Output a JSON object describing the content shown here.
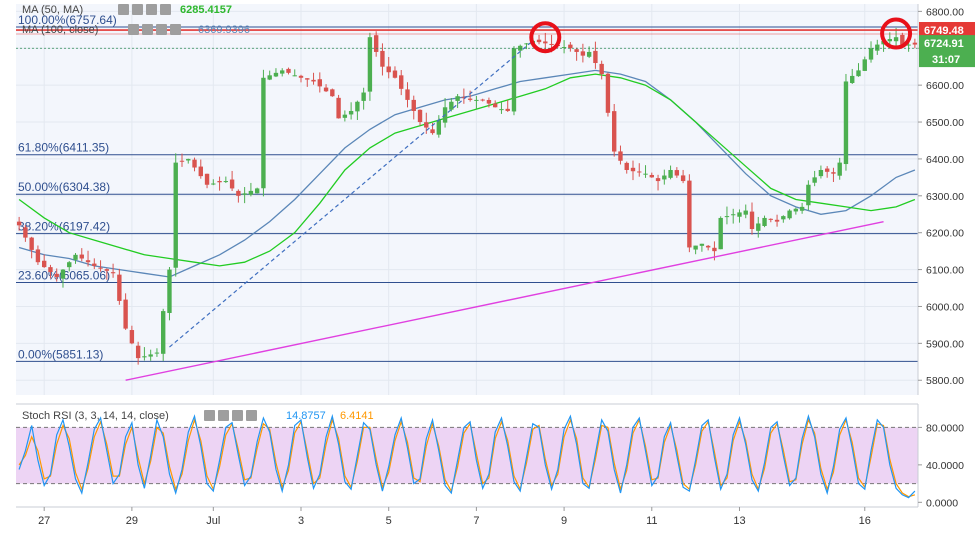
{
  "legend": {
    "ma50": {
      "label": "MA (50, MA)",
      "value": "6285.4157",
      "value_color": "#2eb82e"
    },
    "ma100": {
      "label": "MA (100, close)",
      "value": "6369.9396",
      "value_color": "#5b87b8"
    },
    "stoch": {
      "label": "Stoch RSI (3, 3, 14, 14, close)",
      "k_value": "14.8757",
      "d_value": "6.4141"
    }
  },
  "price_badges": {
    "high": "6749.48",
    "last": "6724.91",
    "countdown": "31:07"
  },
  "colors": {
    "up": "#4caf50",
    "down": "#d9534f",
    "ma50": "#22cc22",
    "ma100": "#5b87b8",
    "fib": "#2f4f8f",
    "trendline": "#e040e0",
    "dashed": "#3f6fc0",
    "resistance": "#e53935",
    "circle": "#e8101a",
    "rsi_k": "#2196f3",
    "rsi_d": "#ff9800",
    "rsi_band": "#e7c6f0",
    "plot_bg": "#f3f6fc",
    "badge_red": "#e53935",
    "badge_green": "#4caf50"
  },
  "chart_data": [
    {
      "type": "candlestick",
      "title": "",
      "y_ticks": [
        5800,
        5900,
        6000,
        6100,
        6200,
        6300,
        6400,
        6500,
        6600,
        6700,
        6800
      ],
      "ylim": [
        5760,
        6820
      ],
      "x_labels": [
        {
          "label": "27",
          "slot": 4
        },
        {
          "label": "29",
          "slot": 18
        },
        {
          "label": "Jul",
          "slot": 31
        },
        {
          "label": "3",
          "slot": 45
        },
        {
          "label": "5",
          "slot": 59
        },
        {
          "label": "7",
          "slot": 73
        },
        {
          "label": "9",
          "slot": 87
        },
        {
          "label": "11",
          "slot": 101
        },
        {
          "label": "13",
          "slot": 115
        },
        {
          "label": "16",
          "slot": 135
        }
      ],
      "fibonacci": [
        {
          "label": "100.00%(6757.64)",
          "price": 6757.64
        },
        {
          "label": "61.80%(6411.35)",
          "price": 6411.35
        },
        {
          "label": "50.00%(6304.38)",
          "price": 6304.38
        },
        {
          "label": "38.20%(6197.42)",
          "price": 6197.42
        },
        {
          "label": "23.60%(6065.06)",
          "price": 6065.06
        },
        {
          "label": "0.00%(5851.13)",
          "price": 5851.13
        }
      ],
      "resistance_line": 6749.48,
      "trendline": {
        "from": [
          17,
          5800
        ],
        "to": [
          138,
          6230
        ]
      },
      "dashed_line": {
        "from": [
          24,
          5890
        ],
        "to": [
          82,
          6720
        ]
      },
      "circles": [
        {
          "slot": 84,
          "price": 6730
        },
        {
          "slot": 140,
          "price": 6740
        }
      ],
      "ohlc_keypoints": [
        [
          0,
          6220
        ],
        [
          3,
          6120
        ],
        [
          6,
          6080
        ],
        [
          9,
          6140
        ],
        [
          12,
          6110
        ],
        [
          15,
          6090
        ],
        [
          17,
          5940
        ],
        [
          19,
          5860
        ],
        [
          22,
          5875
        ],
        [
          24,
          6100
        ],
        [
          25,
          6390
        ],
        [
          27,
          6400
        ],
        [
          30,
          6330
        ],
        [
          33,
          6340
        ],
        [
          35,
          6300
        ],
        [
          38,
          6320
        ],
        [
          39,
          6620
        ],
        [
          42,
          6640
        ],
        [
          45,
          6620
        ],
        [
          47,
          6610
        ],
        [
          50,
          6570
        ],
        [
          51,
          6510
        ],
        [
          53,
          6530
        ],
        [
          55,
          6580
        ],
        [
          56,
          6730
        ],
        [
          58,
          6650
        ],
        [
          60,
          6620
        ],
        [
          62,
          6560
        ],
        [
          64,
          6500
        ],
        [
          66,
          6470
        ],
        [
          68,
          6540
        ],
        [
          70,
          6570
        ],
        [
          72,
          6560
        ],
        [
          74,
          6560
        ],
        [
          76,
          6540
        ],
        [
          78,
          6530
        ],
        [
          79,
          6700
        ],
        [
          82,
          6720
        ],
        [
          85,
          6710
        ],
        [
          88,
          6700
        ],
        [
          90,
          6680
        ],
        [
          91,
          6690
        ],
        [
          93,
          6630
        ],
        [
          95,
          6420
        ],
        [
          97,
          6370
        ],
        [
          100,
          6360
        ],
        [
          102,
          6340
        ],
        [
          104,
          6370
        ],
        [
          106,
          6340
        ],
        [
          107,
          6160
        ],
        [
          109,
          6170
        ],
        [
          111,
          6150
        ],
        [
          112,
          6240
        ],
        [
          114,
          6250
        ],
        [
          116,
          6260
        ],
        [
          117,
          6210
        ],
        [
          119,
          6240
        ],
        [
          121,
          6230
        ],
        [
          123,
          6260
        ],
        [
          125,
          6270
        ],
        [
          126,
          6330
        ],
        [
          128,
          6370
        ],
        [
          130,
          6360
        ],
        [
          131,
          6390
        ],
        [
          132,
          6610
        ],
        [
          134,
          6640
        ],
        [
          136,
          6700
        ],
        [
          138,
          6720
        ],
        [
          140,
          6730
        ],
        [
          141,
          6710
        ]
      ],
      "ma100_points": [
        [
          0,
          6160
        ],
        [
          4,
          6140
        ],
        [
          8,
          6130
        ],
        [
          12,
          6110
        ],
        [
          16,
          6100
        ],
        [
          20,
          6090
        ],
        [
          24,
          6080
        ],
        [
          28,
          6110
        ],
        [
          32,
          6140
        ],
        [
          36,
          6180
        ],
        [
          40,
          6230
        ],
        [
          44,
          6290
        ],
        [
          48,
          6360
        ],
        [
          52,
          6430
        ],
        [
          56,
          6480
        ],
        [
          60,
          6520
        ],
        [
          64,
          6540
        ],
        [
          68,
          6560
        ],
        [
          72,
          6570
        ],
        [
          76,
          6590
        ],
        [
          80,
          6610
        ],
        [
          84,
          6620
        ],
        [
          88,
          6630
        ],
        [
          92,
          6640
        ],
        [
          96,
          6630
        ],
        [
          100,
          6610
        ],
        [
          104,
          6560
        ],
        [
          108,
          6500
        ],
        [
          112,
          6430
        ],
        [
          116,
          6360
        ],
        [
          120,
          6300
        ],
        [
          124,
          6270
        ],
        [
          128,
          6250
        ],
        [
          132,
          6260
        ],
        [
          136,
          6300
        ],
        [
          140,
          6350
        ],
        [
          143,
          6370
        ]
      ],
      "ma50_points": [
        [
          0,
          6290
        ],
        [
          4,
          6240
        ],
        [
          8,
          6200
        ],
        [
          12,
          6180
        ],
        [
          16,
          6160
        ],
        [
          20,
          6140
        ],
        [
          24,
          6130
        ],
        [
          28,
          6120
        ],
        [
          32,
          6110
        ],
        [
          36,
          6120
        ],
        [
          40,
          6150
        ],
        [
          44,
          6200
        ],
        [
          48,
          6280
        ],
        [
          52,
          6370
        ],
        [
          56,
          6430
        ],
        [
          60,
          6470
        ],
        [
          64,
          6490
        ],
        [
          68,
          6510
        ],
        [
          72,
          6530
        ],
        [
          76,
          6550
        ],
        [
          80,
          6570
        ],
        [
          84,
          6590
        ],
        [
          88,
          6620
        ],
        [
          92,
          6630
        ],
        [
          96,
          6620
        ],
        [
          100,
          6600
        ],
        [
          104,
          6560
        ],
        [
          108,
          6500
        ],
        [
          112,
          6440
        ],
        [
          116,
          6380
        ],
        [
          120,
          6320
        ],
        [
          124,
          6290
        ],
        [
          128,
          6280
        ],
        [
          132,
          6270
        ],
        [
          136,
          6260
        ],
        [
          140,
          6270
        ],
        [
          143,
          6290
        ]
      ]
    },
    {
      "type": "line",
      "title": "",
      "y_ticks": [
        0,
        40,
        80
      ],
      "y_tick_labels": [
        "0.0000",
        "40.0000",
        "80.0000"
      ],
      "ylim": [
        -5,
        105
      ],
      "overbought": 80,
      "oversold": 20,
      "k_values": [
        35,
        55,
        82,
        45,
        18,
        30,
        72,
        88,
        60,
        25,
        10,
        42,
        78,
        90,
        55,
        20,
        30,
        70,
        85,
        40,
        15,
        50,
        88,
        70,
        30,
        10,
        35,
        75,
        92,
        60,
        20,
        12,
        45,
        80,
        85,
        50,
        18,
        28,
        65,
        90,
        75,
        35,
        12,
        40,
        82,
        88,
        48,
        15,
        30,
        70,
        92,
        62,
        22,
        14,
        50,
        85,
        78,
        40,
        12,
        38,
        72,
        90,
        58,
        20,
        25,
        68,
        88,
        55,
        18,
        10,
        45,
        80,
        86,
        45,
        15,
        30,
        75,
        90,
        60,
        22,
        12,
        48,
        84,
        80,
        40,
        14,
        35,
        78,
        92,
        62,
        20,
        15,
        52,
        88,
        76,
        35,
        10,
        40,
        80,
        90,
        55,
        18,
        28,
        70,
        85,
        50,
        16,
        12,
        45,
        82,
        88,
        48,
        14,
        30,
        72,
        90,
        62,
        24,
        12,
        42,
        80,
        86,
        50,
        18,
        26,
        68,
        92,
        70,
        30,
        10,
        38,
        78,
        90,
        58,
        20,
        14,
        55,
        88,
        80,
        40,
        15,
        8,
        5,
        12
      ],
      "d_values": [
        40,
        50,
        70,
        55,
        25,
        28,
        62,
        82,
        68,
        32,
        14,
        36,
        70,
        86,
        62,
        28,
        28,
        62,
        80,
        48,
        20,
        44,
        80,
        74,
        38,
        14,
        30,
        66,
        88,
        66,
        28,
        14,
        38,
        72,
        84,
        56,
        24,
        26,
        58,
        84,
        78,
        42,
        16,
        34,
        74,
        86,
        54,
        20,
        26,
        62,
        88,
        68,
        28,
        16,
        44,
        80,
        80,
        46,
        16,
        32,
        66,
        86,
        64,
        26,
        22,
        60,
        84,
        60,
        24,
        12,
        38,
        74,
        84,
        52,
        20,
        26,
        68,
        86,
        66,
        28,
        14,
        42,
        78,
        82,
        46,
        18,
        30,
        70,
        88,
        68,
        26,
        16,
        46,
        82,
        80,
        42,
        14,
        34,
        74,
        88,
        60,
        24,
        26,
        64,
        82,
        56,
        20,
        14,
        40,
        76,
        86,
        54,
        18,
        26,
        66,
        86,
        66,
        30,
        14,
        36,
        74,
        84,
        56,
        22,
        24,
        62,
        88,
        74,
        36,
        14,
        32,
        72,
        88,
        64,
        26,
        16,
        48,
        84,
        82,
        46,
        20,
        10,
        6,
        8
      ]
    }
  ]
}
